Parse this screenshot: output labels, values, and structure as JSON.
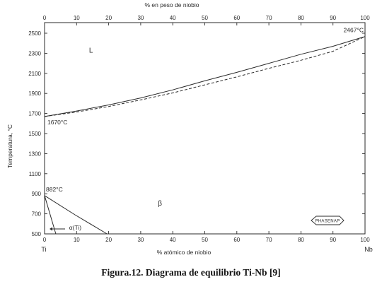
{
  "chart_data": {
    "type": "line",
    "title": "",
    "caption": "Figura.12. Diagrama de equilibrio Ti-Nb [9]",
    "xlabel": "% atómico de niobio",
    "xlabel_top": "% en peso de niobio",
    "ylabel": "Temperatura, °C",
    "xlim": [
      0,
      100
    ],
    "ylim": [
      500,
      2550
    ],
    "x_ticks": [
      0,
      10,
      20,
      30,
      40,
      50,
      60,
      70,
      80,
      90,
      100
    ],
    "x_tick_labels": [
      "0",
      "10",
      "20",
      "30",
      "40",
      "50",
      "60",
      "70",
      "80",
      "90",
      "100"
    ],
    "x_top_ticks": [
      0,
      10,
      20,
      30,
      40,
      50,
      60,
      70,
      80,
      90,
      100
    ],
    "x_top_tick_labels": [
      "0",
      "10",
      "20",
      "30",
      "40",
      "50",
      "60",
      "70",
      "80",
      "90",
      "100"
    ],
    "y_ticks": [
      500,
      700,
      900,
      1100,
      1300,
      1500,
      1700,
      1900,
      2100,
      2300,
      2500
    ],
    "y_tick_labels": [
      "500",
      "700",
      "900",
      "1100",
      "1300",
      "1500",
      "1700",
      "1900",
      "2100",
      "2300",
      "2500"
    ],
    "grid": false,
    "element_left": "Ti",
    "element_right": "Nb",
    "series": [
      {
        "style": "solid",
        "x": [
          0,
          10,
          20,
          30,
          40,
          50,
          60,
          70,
          80,
          90,
          100
        ],
        "y": [
          1670,
          1725,
          1785,
          1855,
          1935,
          2025,
          2110,
          2200,
          2290,
          2370,
          2467
        ]
      },
      {
        "style": "dashed",
        "x": [
          0,
          10,
          20,
          30,
          40,
          50,
          60,
          70,
          80,
          90,
          100
        ],
        "y": [
          1670,
          1715,
          1770,
          1835,
          1905,
          1985,
          2065,
          2150,
          2230,
          2320,
          2467
        ]
      },
      {
        "style": "solid",
        "x": [
          0,
          9.5,
          19.5
        ],
        "y": [
          882,
          690,
          500
        ]
      },
      {
        "style": "solid",
        "x": [
          0,
          3.5
        ],
        "y": [
          882,
          500
        ]
      }
    ],
    "annotations": [
      {
        "text": "2467°C",
        "x": 100,
        "y": 2467
      },
      {
        "text": "1670°C",
        "x": 0,
        "y": 1670
      },
      {
        "text": "882°C",
        "x": 0,
        "y": 882
      },
      {
        "text": "L",
        "x": 14.5,
        "y": 2335
      },
      {
        "text": "β",
        "x": 36,
        "y": 810
      },
      {
        "text": "α(Ti)",
        "x": 7,
        "y": 555
      }
    ],
    "badge": "PHASENAP"
  }
}
